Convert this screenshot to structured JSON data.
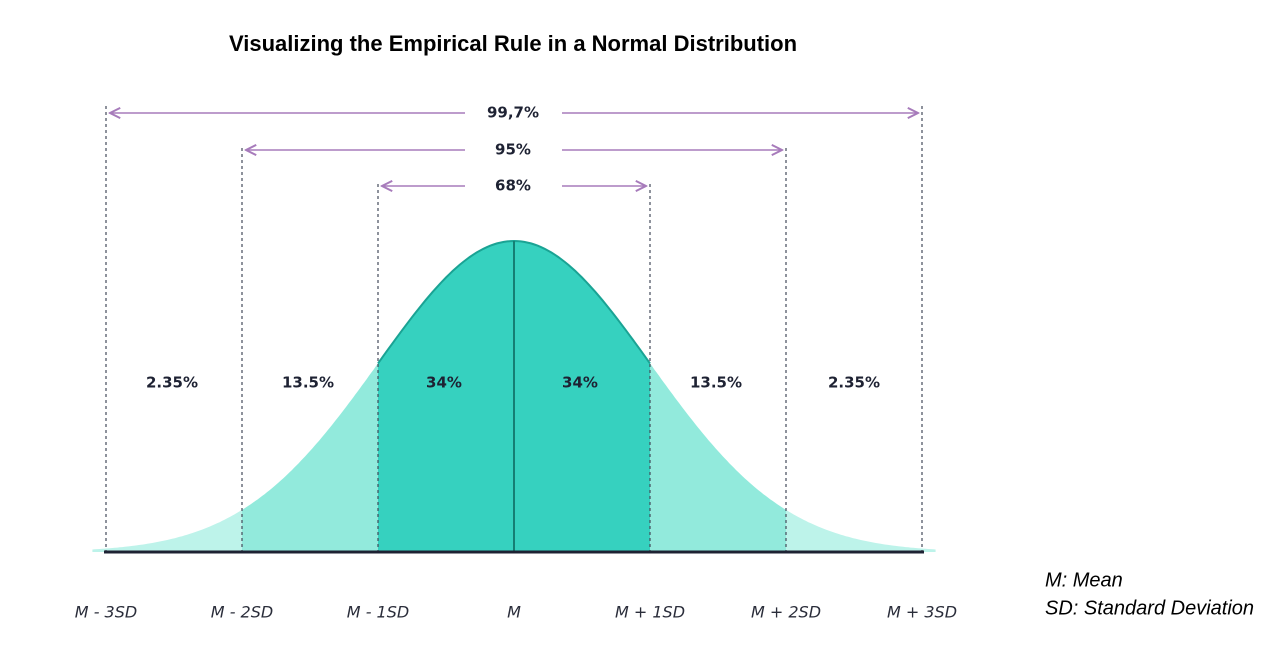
{
  "title": "Visualizing the Empirical Rule in a Normal Distribution",
  "ranges": [
    {
      "label": "99,7%"
    },
    {
      "label": "95%"
    },
    {
      "label": "68%"
    }
  ],
  "regions": [
    "2.35%",
    "13.5%",
    "34%",
    "34%",
    "13.5%",
    "2.35%"
  ],
  "x_labels": [
    "M - 3SD",
    "M - 2SD",
    "M - 1SD",
    "M",
    "M + 1SD",
    "M + 2SD",
    "M + 3SD"
  ],
  "legend": [
    "M: Mean",
    "SD: Standard Deviation"
  ]
}
